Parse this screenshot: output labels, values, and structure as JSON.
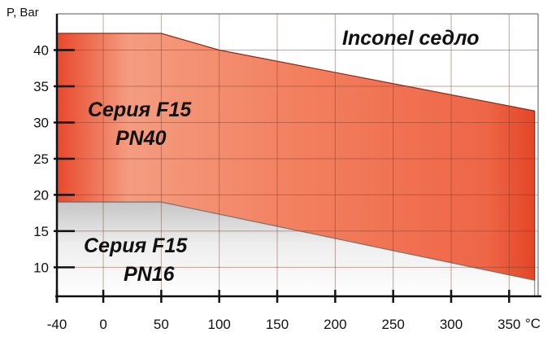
{
  "chart_data": {
    "type": "area",
    "title": "Inconel седло",
    "xlabel": "°C",
    "ylabel": "P, Bar",
    "xlim": [
      -40,
      375
    ],
    "ylim": [
      6,
      45
    ],
    "x_ticks": [
      -40,
      0,
      50,
      100,
      150,
      200,
      250,
      300,
      350
    ],
    "y_ticks": [
      10,
      15,
      20,
      25,
      30,
      35,
      40
    ],
    "grid": true,
    "series": [
      {
        "name": "Серия F15 PN40",
        "label_lines": [
          "Серия F15",
          "PN40"
        ],
        "color": "#e8563a",
        "x": [
          -40,
          50,
          100,
          372
        ],
        "y": [
          42.3,
          42.3,
          40,
          31.6
        ]
      },
      {
        "name": "Серия F15 PN16",
        "label_lines": [
          "Серия F15",
          "PN16"
        ],
        "color": "#c9c9c9",
        "x": [
          -40,
          50,
          372
        ],
        "y": [
          19,
          19,
          8.2
        ]
      }
    ]
  }
}
